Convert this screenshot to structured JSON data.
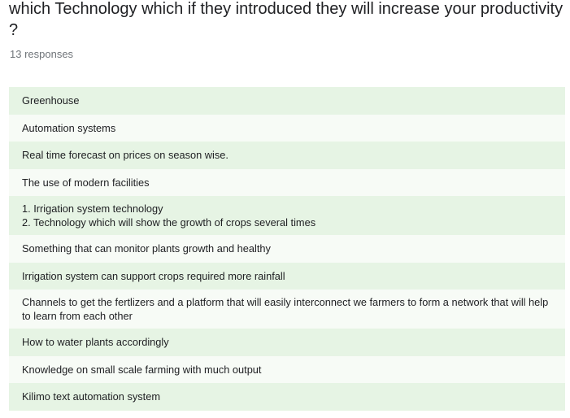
{
  "question": {
    "title": "which Technology which if they introduced they will increase your productivity ?",
    "response_count": "13 responses"
  },
  "responses": [
    "Greenhouse",
    "Automation systems",
    "Real time forecast on prices on season wise.",
    "The use of modern facilities",
    "1. Irrigation system technology\n2. Technology which will show the growth of crops several times",
    "Something that can monitor plants growth and healthy",
    "Irrigation system can support crops required more rainfall",
    "Channels to get the fertlizers and a platform that will easily interconnect we farmers to form a network that will help to learn from each other",
    "How to water plants accordingly",
    "Knowledge on small scale farming with much output",
    "Kilimo text automation system"
  ]
}
